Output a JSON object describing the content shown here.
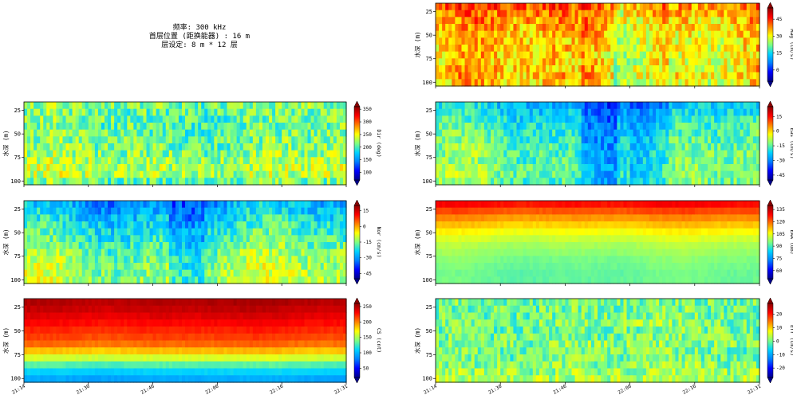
{
  "info": {
    "line1": "频率: 300 kHz",
    "line2": "首层位置 (距换能器) : 16 m",
    "line3": "层设定: 8 m * 12 层"
  },
  "colormap": [
    "#00008b",
    "#0000ff",
    "#0080ff",
    "#00d4ff",
    "#7fff7f",
    "#ffff00",
    "#ff8000",
    "#ff0000",
    "#8b0000"
  ],
  "chart_data": [
    {
      "type": "heatmap",
      "id": "mag",
      "column": "right",
      "row": 0,
      "ylabel": "水深 (m)",
      "yticks": [
        "25",
        "50",
        "75",
        "100"
      ],
      "ylim": [
        16,
        104
      ],
      "colorbar_label": "Mag (cm/s)",
      "colorbar_ticks": [
        "0",
        "15",
        "30",
        "45"
      ],
      "vrange": [
        -10,
        55
      ],
      "colorbar_extend": "both",
      "xtick_labels_visible": false,
      "depth_profile": [
        38,
        36,
        34,
        33,
        32,
        31,
        31,
        30,
        30,
        31,
        32,
        30
      ],
      "time_variation": 10,
      "noise": 7,
      "hot_bands": [
        [
          0.45,
          0.55,
          6
        ],
        [
          0.58,
          0.72,
          4
        ]
      ]
    },
    {
      "type": "heatmap",
      "id": "dir",
      "column": "left",
      "row": 1,
      "ylabel": "水深 (m)",
      "yticks": [
        "25",
        "50",
        "75",
        "100"
      ],
      "ylim": [
        16,
        104
      ],
      "colorbar_label": "Dir (deg)",
      "colorbar_ticks": [
        "100",
        "150",
        "200",
        "250",
        "300",
        "350"
      ],
      "vrange": [
        70,
        360
      ],
      "colorbar_extend": "both",
      "xtick_labels_visible": false,
      "depth_profile": [
        215,
        212,
        210,
        208,
        210,
        212,
        215,
        220,
        225,
        230,
        228,
        210
      ],
      "time_variation": 12,
      "noise": 30,
      "hot_bands": []
    },
    {
      "type": "heatmap",
      "id": "eas",
      "column": "right",
      "row": 1,
      "ylabel": "水深 (m)",
      "yticks": [
        "25",
        "50",
        "75",
        "100"
      ],
      "ylim": [
        16,
        104
      ],
      "colorbar_label": "Eas (cm/s)",
      "colorbar_ticks": [
        "-45",
        "-30",
        "-15",
        "0",
        "15"
      ],
      "vrange": [
        -50,
        25
      ],
      "colorbar_extend": "both",
      "xtick_labels_visible": false,
      "depth_profile": [
        -25,
        -23,
        -21,
        -19,
        -18,
        -17,
        -16,
        -15,
        -15,
        -14,
        -14,
        -15
      ],
      "time_variation": 7,
      "noise": 6,
      "hot_bands": [
        [
          0.45,
          0.56,
          -8
        ],
        [
          0.6,
          0.72,
          -5
        ]
      ]
    },
    {
      "type": "heatmap",
      "id": "nor",
      "column": "left",
      "row": 2,
      "ylabel": "水深 (m)",
      "yticks": [
        "25",
        "50",
        "75",
        "100"
      ],
      "ylim": [
        16,
        104
      ],
      "colorbar_label": "Nor (cm/s)",
      "colorbar_ticks": [
        "-45",
        "-30",
        "-15",
        "0",
        "15"
      ],
      "vrange": [
        -50,
        20
      ],
      "colorbar_extend": "both",
      "xtick_labels_visible": false,
      "depth_profile": [
        -28,
        -26,
        -24,
        -22,
        -20,
        -19,
        -17,
        -15,
        -14,
        -13,
        -12,
        -12
      ],
      "time_variation": 6,
      "noise": 6,
      "hot_bands": [
        [
          0.45,
          0.56,
          -6
        ]
      ]
    },
    {
      "type": "heatmap",
      "id": "eaa",
      "column": "right",
      "row": 2,
      "ylabel": "水深 (m)",
      "yticks": [
        "25",
        "50",
        "75",
        "100"
      ],
      "ylim": [
        16,
        104
      ],
      "colorbar_label": "EAA (dB)",
      "colorbar_ticks": [
        "60",
        "75",
        "90",
        "105",
        "120",
        "135"
      ],
      "vrange": [
        50,
        140
      ],
      "colorbar_extend": "both",
      "xtick_labels_visible": false,
      "depth_profile": [
        128,
        122,
        116,
        111,
        106,
        102,
        99,
        97,
        95,
        94,
        93,
        93
      ],
      "time_variation": 2,
      "noise": 1,
      "hot_bands": []
    },
    {
      "type": "heatmap",
      "id": "cs",
      "column": "left",
      "row": 3,
      "ylabel": "水深 (m)",
      "yticks": [
        "25",
        "50",
        "75",
        "100"
      ],
      "ylim": [
        16,
        104
      ],
      "colorbar_label": "CS (cnt)",
      "colorbar_ticks": [
        "50",
        "100",
        "150",
        "200",
        "250"
      ],
      "vrange": [
        20,
        260
      ],
      "colorbar_extend": "both",
      "xtick_labels_visible": true,
      "depth_profile": [
        250,
        245,
        238,
        230,
        222,
        215,
        205,
        185,
        160,
        130,
        110,
        95
      ],
      "time_variation": 4,
      "noise": 3,
      "hot_bands": []
    },
    {
      "type": "heatmap",
      "id": "err",
      "column": "right",
      "row": 3,
      "ylabel": "水深 (m)",
      "yticks": [
        "25",
        "50",
        "75",
        "100"
      ],
      "ylim": [
        16,
        104
      ],
      "colorbar_label": "Err (cm/s)",
      "colorbar_ticks": [
        "-20",
        "-10",
        "0",
        "10",
        "20"
      ],
      "vrange": [
        -27,
        28
      ],
      "colorbar_extend": "both",
      "xtick_labels_visible": true,
      "depth_profile": [
        0,
        0,
        0,
        1,
        0,
        0,
        1,
        0,
        0,
        1,
        2,
        3
      ],
      "time_variation": 1,
      "noise": 5,
      "hot_bands": []
    }
  ],
  "xtick_labels": [
    "21:14",
    "21:30",
    "21:46",
    "22:00",
    "22:16",
    "22:31"
  ]
}
